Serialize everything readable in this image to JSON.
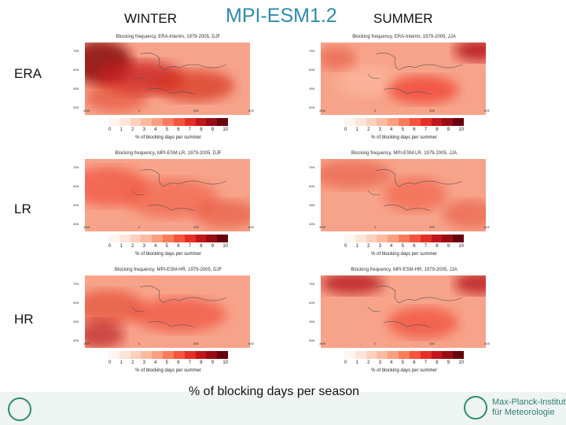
{
  "header": {
    "left": "WINTER",
    "center": "MPI-ESM1.2",
    "right": "SUMMER"
  },
  "rows": [
    "ERA",
    "LR",
    "HR"
  ],
  "panels": {
    "era_winter": "Blocking frequency, ERA-Interim, 1979-2005, DJF",
    "era_summer": "Blocking frequency, ERA-Interim, 1979-2005, JJA",
    "lr_winter": "Blocking frequency, MPI-ESM-LR, 1979-2005, DJF",
    "lr_summer": "Blocking frequency, MPI-ESM-LR, 1979-2005, JJA",
    "hr_winter": "Blocking frequency, MPI-ESM-HR, 1979-2005, DJF",
    "hr_summer": "Blocking frequency, MPI-ESM-HR, 1979-2005, JJA"
  },
  "map_axes": {
    "lat_ticks": [
      "75N",
      "60N",
      "45N",
      "30N"
    ],
    "lon_ticks": [
      "30W",
      "0",
      "30E",
      "60E"
    ]
  },
  "colorbar": {
    "ticks": [
      "0",
      "1",
      "2",
      "3",
      "4",
      "5",
      "6",
      "7",
      "8",
      "9",
      "10"
    ],
    "label": "% of blocking days per summer",
    "colors": [
      "#fff5f0",
      "#fee5d9",
      "#fdd0bd",
      "#fcbba1",
      "#fc9f81",
      "#fb7c5c",
      "#f5553c",
      "#e32f27",
      "#c1161b",
      "#9a0c14",
      "#67000d"
    ]
  },
  "caption": "% of blocking days per season",
  "footer": {
    "institute_line1": "Max-Planck-Institut",
    "institute_line2": "für Meteorologie"
  }
}
